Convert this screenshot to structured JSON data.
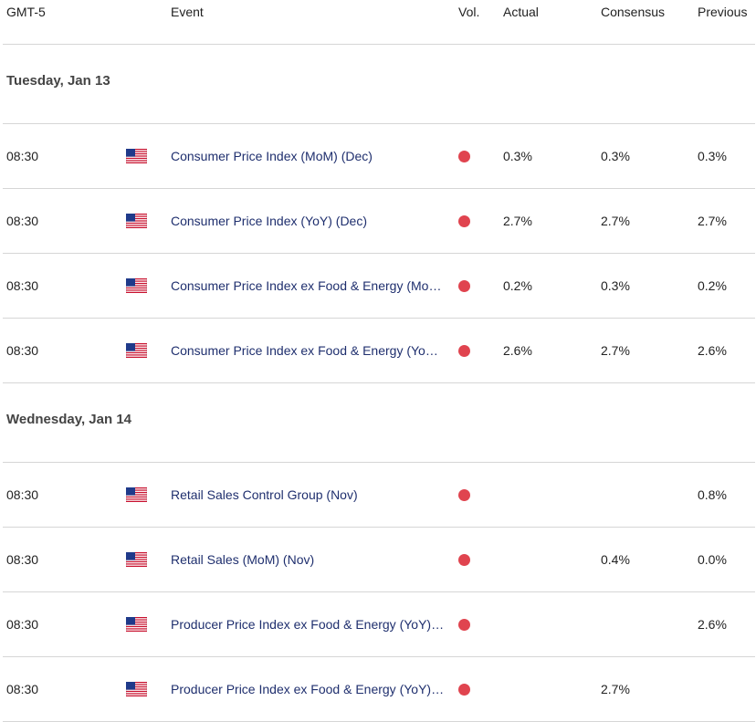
{
  "header": [
    "GMT-5",
    "Event",
    "Vol.",
    "Actual",
    "Consensus",
    "Previous"
  ],
  "days": [
    {
      "title": "Tuesday, Jan 13",
      "rows": [
        {
          "time": "08:30",
          "event": "Consumer Price Index (MoM) (Dec)",
          "actual": "0.3%",
          "consensus": "0.3%",
          "previous": "0.3%"
        },
        {
          "time": "08:30",
          "event": "Consumer Price Index (YoY) (Dec)",
          "actual": "2.7%",
          "consensus": "2.7%",
          "previous": "2.7%"
        },
        {
          "time": "08:30",
          "event": "Consumer Price Index ex Food & Energy (Mo…",
          "actual": "0.2%",
          "consensus": "0.3%",
          "previous": "0.2%"
        },
        {
          "time": "08:30",
          "event": "Consumer Price Index ex Food & Energy (Yo…",
          "actual": "2.6%",
          "consensus": "2.7%",
          "previous": "2.6%"
        }
      ]
    },
    {
      "title": "Wednesday, Jan 14",
      "rows": [
        {
          "time": "08:30",
          "event": "Retail Sales Control Group (Nov)",
          "previous": "0.8%"
        },
        {
          "time": "08:30",
          "event": "Retail Sales (MoM) (Nov)",
          "consensus": "0.4%",
          "previous": "0.0%"
        },
        {
          "time": "08:30",
          "event": "Producer Price Index ex Food & Energy (YoY)…",
          "previous": "2.6%"
        },
        {
          "time": "08:30",
          "event": "Producer Price Index ex Food & Energy (YoY)…",
          "consensus": "2.7%"
        }
      ]
    }
  ]
}
